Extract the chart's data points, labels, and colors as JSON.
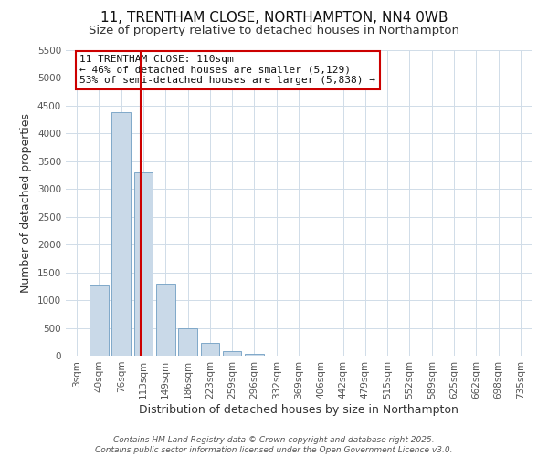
{
  "title": "11, TRENTHAM CLOSE, NORTHAMPTON, NN4 0WB",
  "subtitle": "Size of property relative to detached houses in Northampton",
  "xlabel": "Distribution of detached houses by size in Northampton",
  "ylabel": "Number of detached properties",
  "bar_labels": [
    "3sqm",
    "40sqm",
    "76sqm",
    "113sqm",
    "149sqm",
    "186sqm",
    "223sqm",
    "259sqm",
    "296sqm",
    "332sqm",
    "369sqm",
    "406sqm",
    "442sqm",
    "479sqm",
    "515sqm",
    "552sqm",
    "589sqm",
    "625sqm",
    "662sqm",
    "698sqm",
    "735sqm"
  ],
  "bar_values": [
    0,
    1270,
    4380,
    3300,
    1290,
    500,
    230,
    80,
    30,
    0,
    0,
    0,
    0,
    0,
    0,
    0,
    0,
    0,
    0,
    0,
    0
  ],
  "bar_color": "#c9d9e8",
  "bar_edge_color": "#7fa8c9",
  "vline_x": 2.88,
  "vline_color": "#cc0000",
  "ylim": [
    0,
    5500
  ],
  "yticks": [
    0,
    500,
    1000,
    1500,
    2000,
    2500,
    3000,
    3500,
    4000,
    4500,
    5000,
    5500
  ],
  "annotation_title": "11 TRENTHAM CLOSE: 110sqm",
  "annotation_line1": "← 46% of detached houses are smaller (5,129)",
  "annotation_line2": "53% of semi-detached houses are larger (5,838) →",
  "annotation_box_color": "#ffffff",
  "annotation_box_edge_color": "#cc0000",
  "footer_line1": "Contains HM Land Registry data © Crown copyright and database right 2025.",
  "footer_line2": "Contains public sector information licensed under the Open Government Licence v3.0.",
  "background_color": "#ffffff",
  "grid_color": "#d0dce8",
  "title_fontsize": 11,
  "subtitle_fontsize": 9.5,
  "axis_label_fontsize": 9,
  "tick_fontsize": 7.5,
  "annotation_fontsize": 8,
  "footer_fontsize": 6.5
}
